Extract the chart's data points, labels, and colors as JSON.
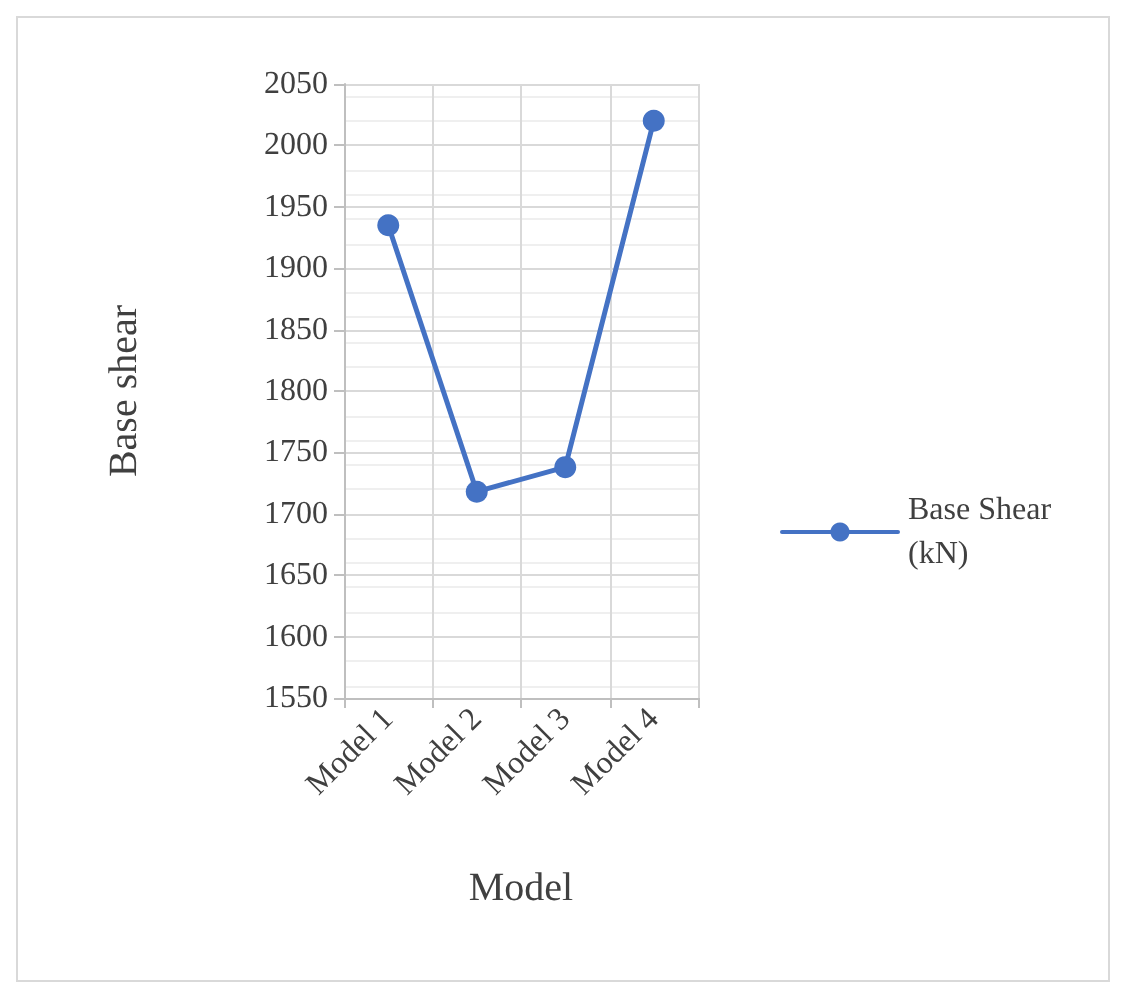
{
  "chart_data": {
    "type": "line",
    "xlabel": "Model",
    "ylabel": "Base shear",
    "categories": [
      "Model 1",
      "Model 2",
      "Model 3",
      "Model 4"
    ],
    "series": [
      {
        "name": "Base Shear (kN)",
        "color": "#4472c4",
        "values": [
          1935,
          1718,
          1738,
          2020
        ]
      }
    ],
    "ylim": [
      1550,
      2050
    ],
    "yticks": [
      1550,
      1600,
      1650,
      1700,
      1750,
      1800,
      1850,
      1900,
      1950,
      2000,
      2050
    ],
    "grid": true,
    "legend": "right",
    "marker": "circle",
    "line_style": "solid"
  }
}
